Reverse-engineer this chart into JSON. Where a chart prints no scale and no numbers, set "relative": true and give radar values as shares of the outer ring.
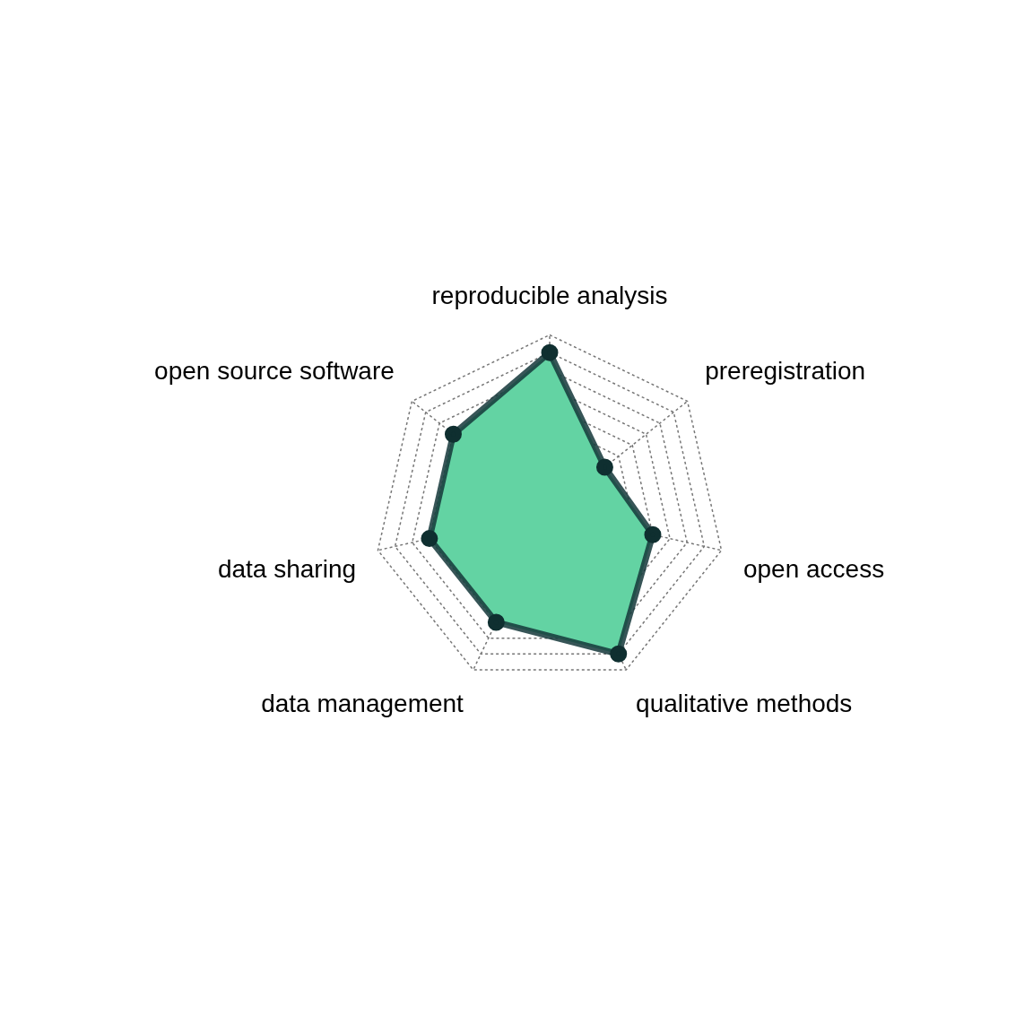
{
  "chart_data": {
    "type": "radar",
    "relative": true,
    "grid": true,
    "marker": "circle",
    "line_style": "solid",
    "categories": [
      "reproducible analysis",
      "preregistration",
      "open access",
      "qualitative methods",
      "data management",
      "data sharing",
      "open source software"
    ],
    "series": [
      {
        "color": "#63d3a3",
        "values": [
          0.9,
          0.4,
          0.6,
          0.9,
          0.7,
          0.7,
          0.7
        ]
      }
    ]
  }
}
